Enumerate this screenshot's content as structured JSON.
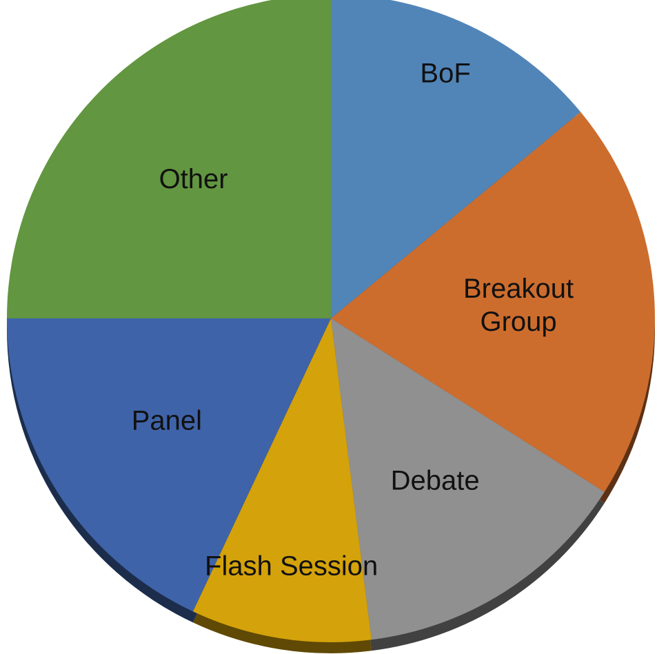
{
  "chart_data": {
    "type": "pie",
    "categories": [
      "BoF",
      "Breakout Group",
      "Debate",
      "Flash Session",
      "Panel",
      "Other"
    ],
    "values": [
      14,
      20,
      14,
      9,
      18,
      25
    ],
    "colors": [
      "#5185b8",
      "#cc6d2e",
      "#909090",
      "#d4a20a",
      "#3f63a8",
      "#629640"
    ]
  }
}
